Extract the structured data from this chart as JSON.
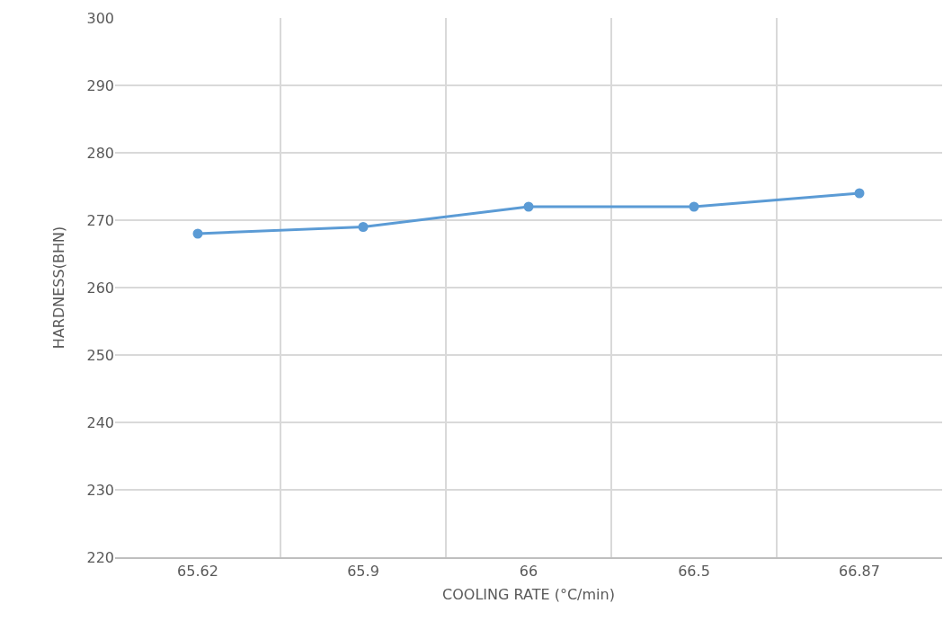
{
  "chart_data": {
    "type": "line",
    "xlabel": "COOLING RATE (°C/min)",
    "ylabel": "HARDNESS(BHN)",
    "categories": [
      "65.62",
      "65.9",
      "66",
      "66.5",
      "66.87"
    ],
    "series": [
      {
        "color": "#5b9bd5",
        "values": [
          268,
          269,
          272,
          272,
          274
        ]
      }
    ],
    "ylim": [
      220,
      300
    ],
    "yticks": [
      220,
      230,
      240,
      250,
      260,
      270,
      280,
      290,
      300
    ],
    "grid": true,
    "marker": "circle",
    "line_style": "solid"
  }
}
